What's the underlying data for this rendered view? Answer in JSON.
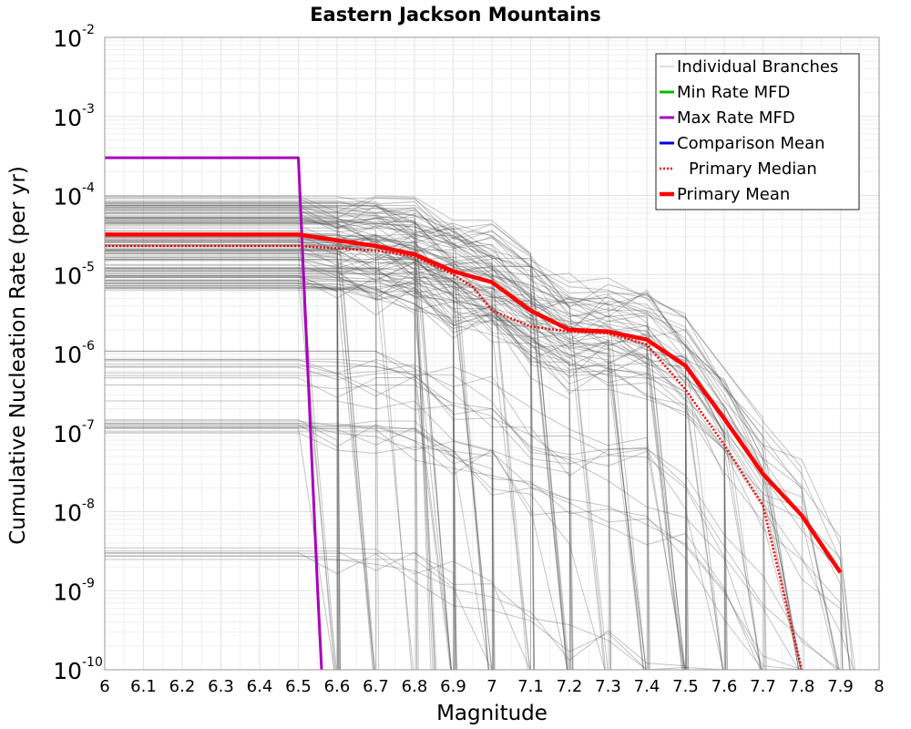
{
  "chart_data": {
    "type": "line",
    "title": "Eastern Jackson Mountains",
    "xlabel": "Magnitude",
    "ylabel": "Cumulative Nucleation Rate (per yr)",
    "xlim": [
      6,
      8
    ],
    "ylim": [
      1e-10,
      0.01
    ],
    "yscale": "log",
    "grid": true,
    "legend_position": "top-right",
    "x_ticks": [
      "6",
      "6.1",
      "6.2",
      "6.3",
      "6.4",
      "6.5",
      "6.6",
      "6.7",
      "6.8",
      "6.9",
      "7",
      "7.1",
      "7.2",
      "7.3",
      "7.4",
      "7.5",
      "7.6",
      "7.7",
      "7.8",
      "7.9",
      "8"
    ],
    "y_ticks": [
      {
        "base": "10",
        "exp": "-2",
        "value": 0.01
      },
      {
        "base": "10",
        "exp": "-3",
        "value": 0.001
      },
      {
        "base": "10",
        "exp": "-4",
        "value": 0.0001
      },
      {
        "base": "10",
        "exp": "-5",
        "value": 1e-05
      },
      {
        "base": "10",
        "exp": "-6",
        "value": 1e-06
      },
      {
        "base": "10",
        "exp": "-7",
        "value": 1e-07
      },
      {
        "base": "10",
        "exp": "-8",
        "value": 1e-08
      },
      {
        "base": "10",
        "exp": "-9",
        "value": 1e-09
      },
      {
        "base": "10",
        "exp": "-10",
        "value": 1e-10
      }
    ],
    "series": [
      {
        "name": "Individual Branches",
        "color": "#555555",
        "style": "thin",
        "x": [],
        "y": []
      },
      {
        "name": "Min Rate MFD",
        "color": "#00bb00",
        "style": "solid",
        "x": [],
        "y": []
      },
      {
        "name": "Max Rate MFD",
        "color": "#aa00bb",
        "style": "solid",
        "x": [
          6.0,
          6.5,
          6.55,
          6.56
        ],
        "y": [
          0.0003,
          0.0003,
          1e-09,
          1e-10
        ]
      },
      {
        "name": "Comparison Mean",
        "color": "#0000dd",
        "style": "solid",
        "x": [],
        "y": []
      },
      {
        "name": "Primary Median",
        "color": "#ff0000",
        "style": "dotted",
        "x": [
          6.0,
          6.5,
          6.7,
          6.8,
          6.9,
          6.95,
          7.0,
          7.1,
          7.2,
          7.3,
          7.4,
          7.5,
          7.6,
          7.7,
          7.8
        ],
        "y": [
          2.3e-05,
          2.3e-05,
          2e-05,
          1.7e-05,
          1e-05,
          7e-06,
          3.5e-06,
          2.2e-06,
          1.9e-06,
          1.8e-06,
          1.3e-06,
          3.5e-07,
          7e-08,
          1.2e-08,
          1e-10
        ]
      },
      {
        "name": "Primary Mean",
        "color": "#ff0000",
        "style": "thick",
        "x": [
          6.0,
          6.5,
          6.6,
          6.7,
          6.8,
          6.9,
          7.0,
          7.1,
          7.2,
          7.3,
          7.4,
          7.5,
          7.6,
          7.7,
          7.8,
          7.9
        ],
        "y": [
          3.2e-05,
          3.2e-05,
          2.7e-05,
          2.3e-05,
          1.8e-05,
          1.1e-05,
          8e-06,
          3.5e-06,
          2e-06,
          1.9e-06,
          1.5e-06,
          7e-07,
          1.5e-07,
          3e-08,
          9e-09,
          1.7e-09
        ]
      }
    ]
  }
}
